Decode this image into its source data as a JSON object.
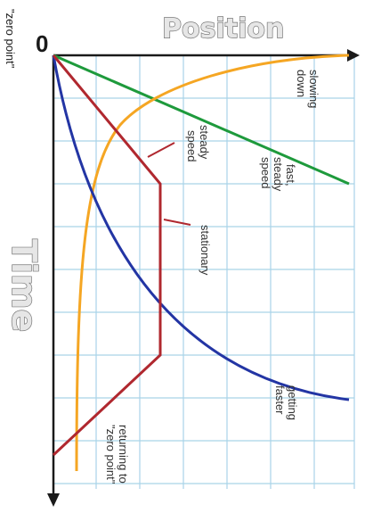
{
  "diagram": {
    "axis_horizontal_title": "Position",
    "axis_vertical_title": "Time",
    "origin_label": "0",
    "origin_note": "\"zero point\"",
    "labels": {
      "slowing_down": [
        "slowing",
        "down"
      ],
      "fast_steady_speed": [
        "fast,",
        "steady",
        "speed"
      ],
      "steady_speed": [
        "steady",
        "speed"
      ],
      "stationary": "stationary",
      "getting_faster": [
        "getting",
        "faster"
      ],
      "returning": [
        "returning to",
        "\"zero point\""
      ]
    },
    "colors": {
      "grid": "#a9d3e8",
      "axis": "#1a1a1a",
      "slowing_down": "#f5a623",
      "fast_steady": "#1e9a3c",
      "steady_then_return": "#b0282f",
      "getting_faster": "#2335a4"
    }
  }
}
